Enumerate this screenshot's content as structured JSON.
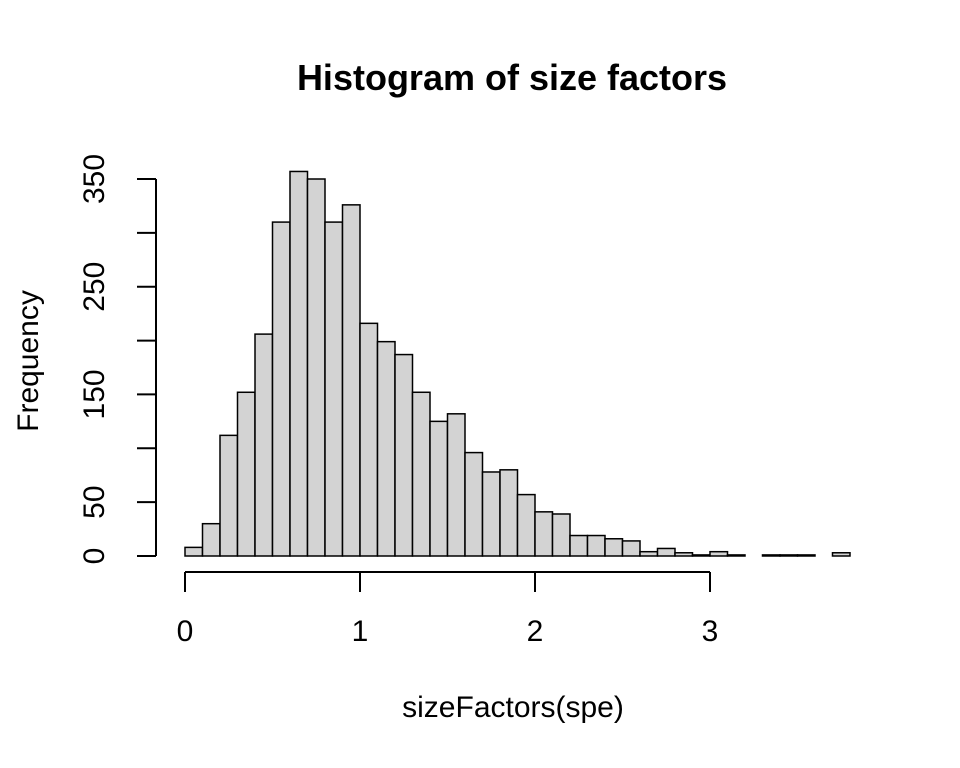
{
  "background": "#ffffff",
  "chart_data": {
    "type": "bar",
    "variant": "histogram",
    "title": "Histogram of size factors",
    "xlabel": "sizeFactors(spe)",
    "ylabel": "Frequency",
    "bin_start": 0,
    "bin_width": 0.1,
    "values": [
      8,
      30,
      112,
      152,
      206,
      310,
      357,
      350,
      310,
      326,
      216,
      199,
      187,
      152,
      125,
      132,
      96,
      78,
      80,
      57,
      41,
      39,
      19,
      19,
      16,
      14,
      4,
      7,
      3,
      1,
      4,
      1,
      0,
      1,
      1,
      1,
      0,
      3
    ],
    "xlim": [
      0,
      3.8
    ],
    "ylim": [
      0,
      350
    ],
    "x_ticks": [
      0,
      1,
      2,
      3
    ],
    "x_tick_labels": [
      "0",
      "1",
      "2",
      "3"
    ],
    "y_ticks": [
      0,
      50,
      100,
      150,
      200,
      250,
      300,
      350
    ],
    "y_tick_labels": [
      "0",
      "50",
      "",
      "150",
      "",
      "250",
      "",
      "350"
    ],
    "grid": false,
    "legend_position": "none",
    "bar_fill": "#d3d3d3",
    "bar_stroke": "#000000",
    "axis_color": "#000000",
    "text_color": "#000000"
  }
}
